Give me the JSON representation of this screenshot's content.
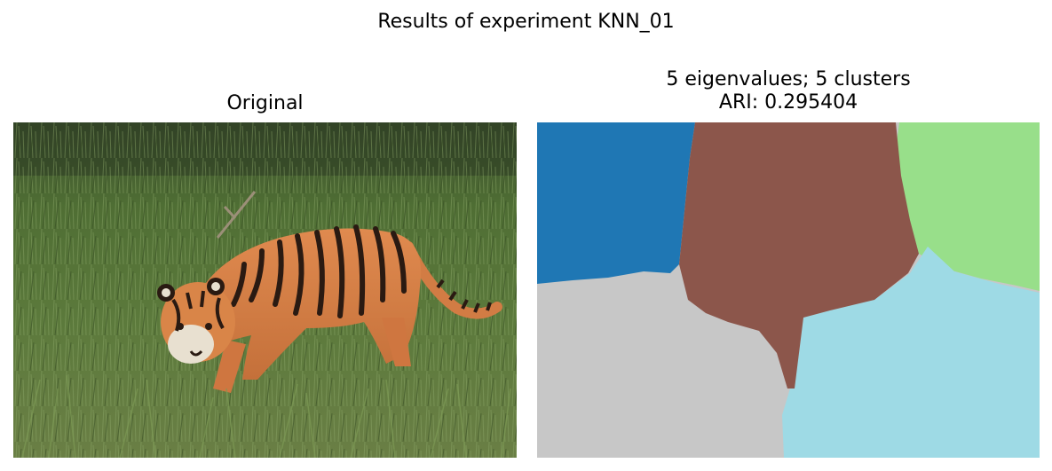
{
  "figure": {
    "title": "Results of experiment KNN_01"
  },
  "panels": [
    {
      "title": "Original",
      "image": "photo of a tiger walking through tall green grass"
    },
    {
      "title_line1": "5 eigenvalues; 5 clusters",
      "title_line2": "ARI: 0.295404",
      "eigenvalues": 5,
      "clusters": 5,
      "ari": 0.295404,
      "cluster_colors": [
        "#1f77b4",
        "#8c564b",
        "#98df8a",
        "#c7c7c7",
        "#9edae5"
      ]
    }
  ],
  "colors": {
    "grass_dark": "#3d5a2a",
    "grass_mid": "#5e7d3e",
    "grass_light": "#8fa86a",
    "tiger_orange": "#d9834a",
    "tiger_stripe": "#2a1a12",
    "tiger_white": "#e8e0d0"
  }
}
